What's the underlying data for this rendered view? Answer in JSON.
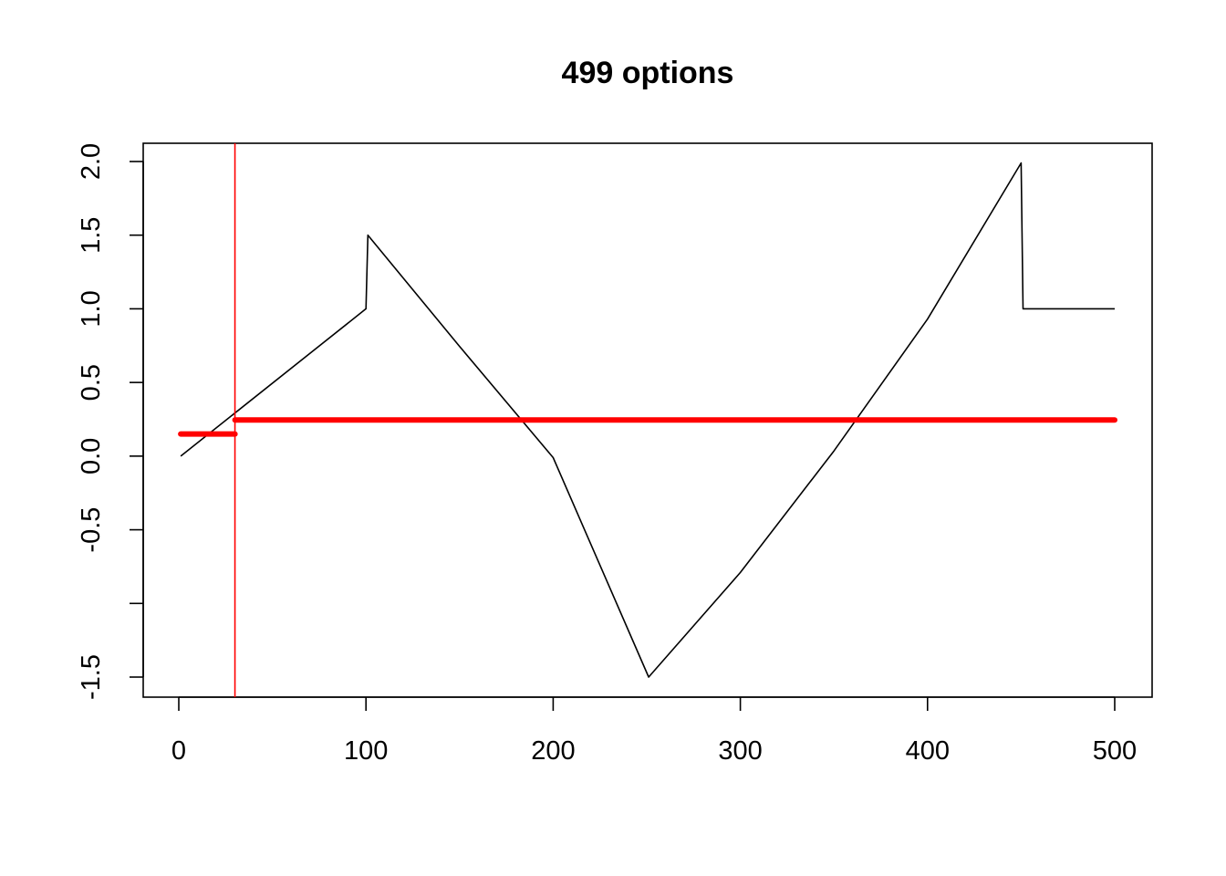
{
  "chart_data": {
    "type": "line",
    "title": "499 options",
    "xlabel": "",
    "ylabel": "",
    "xlim": [
      0,
      500
    ],
    "ylim": [
      -1.5,
      2.0
    ],
    "x_ticks": [
      0,
      100,
      200,
      300,
      400,
      500
    ],
    "y_ticks": [
      2.0,
      1.5,
      1.0,
      0.5,
      0.0,
      -0.5,
      -1.0,
      -1.5
    ],
    "x_tick_labels": [
      "0",
      "100",
      "200",
      "300",
      "400",
      "500"
    ],
    "y_tick_labels": [
      "2.0",
      "1.5",
      "1.0",
      "0.5",
      "0.0",
      "-0.5",
      "",
      "-1.5"
    ],
    "grid": false,
    "series": [
      {
        "color": "#000000",
        "style": "thin-line",
        "points": [
          [
            1,
            0.0
          ],
          [
            100,
            1.0
          ],
          [
            101,
            1.5
          ],
          [
            150,
            0.745
          ],
          [
            200,
            -0.01
          ],
          [
            251,
            -1.5
          ],
          [
            300,
            -0.79
          ],
          [
            350,
            0.035
          ],
          [
            400,
            0.93
          ],
          [
            450,
            1.99
          ],
          [
            451,
            1.0
          ],
          [
            500,
            1.0
          ]
        ]
      },
      {
        "color": "#ff0000",
        "style": "thick-line",
        "points": [
          [
            1,
            0.15
          ],
          [
            30,
            0.15
          ]
        ]
      },
      {
        "color": "#ff0000",
        "style": "thick-line",
        "points": [
          [
            30,
            0.245
          ],
          [
            500,
            0.245
          ]
        ]
      }
    ],
    "vertical_lines": [
      {
        "x": 30,
        "color": "#ff0000"
      }
    ]
  }
}
